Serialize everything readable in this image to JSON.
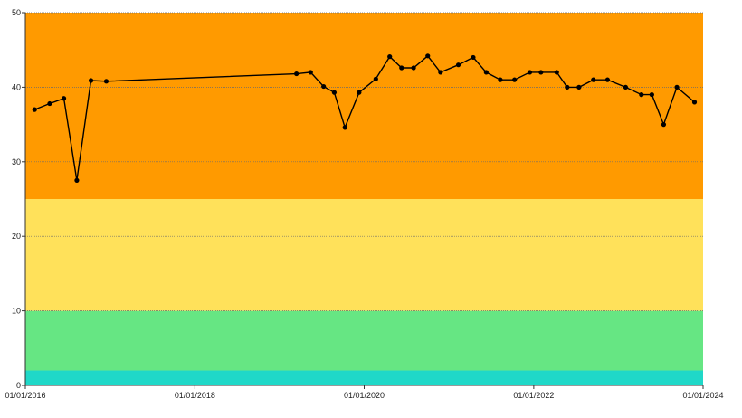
{
  "chart_data": {
    "type": "line",
    "title": "",
    "xlabel": "",
    "ylabel": "",
    "ylim": [
      0,
      50
    ],
    "xlim": [
      "2016-01-01",
      "2024-01-01"
    ],
    "y_ticks": [
      0,
      10,
      20,
      30,
      40,
      50
    ],
    "y_tick_labels": [
      "0",
      "10",
      "20",
      "30",
      "40",
      "50"
    ],
    "x_ticks": [
      "2016-01-01",
      "2018-01-01",
      "2020-01-01",
      "2022-01-01",
      "2024-01-01"
    ],
    "x_tick_labels": [
      "01/01/2016",
      "01/01/2018",
      "01/01/2020",
      "01/01/2022",
      "01/01/2024"
    ],
    "grid": "horizontal",
    "bands": [
      {
        "from": 0,
        "to": 2,
        "color": "#1fd8c8"
      },
      {
        "from": 2,
        "to": 10,
        "color": "#66e683"
      },
      {
        "from": 10,
        "to": 25,
        "color": "#ffe15a"
      },
      {
        "from": 25,
        "to": 50,
        "color": "#ff9a00"
      }
    ],
    "line_color": "#000000",
    "series": [
      {
        "x": [
          "2016-02-10",
          "2016-04-15",
          "2016-06-15",
          "2016-08-10",
          "2016-10-10",
          "2016-12-15",
          "2019-03-15",
          "2019-05-15",
          "2019-07-10",
          "2019-08-25",
          "2019-10-10",
          "2019-12-10",
          "2020-02-20",
          "2020-04-20",
          "2020-06-10",
          "2020-08-01",
          "2020-10-01",
          "2020-11-25",
          "2021-02-10",
          "2021-04-15",
          "2021-06-10",
          "2021-08-10",
          "2021-10-10",
          "2021-12-15",
          "2022-02-01",
          "2022-04-10",
          "2022-05-25",
          "2022-07-15",
          "2022-09-15",
          "2022-11-15",
          "2023-02-01",
          "2023-04-10",
          "2023-05-25",
          "2023-07-15",
          "2023-09-10",
          "2023-11-25"
        ],
        "values": [
          37,
          37.8,
          38.5,
          27.5,
          40.9,
          40.8,
          41.8,
          42.0,
          40.1,
          39.3,
          34.6,
          39.3,
          41.1,
          44.1,
          42.6,
          42.6,
          44.2,
          42.0,
          43.0,
          44.0,
          42.0,
          41.0,
          41.0,
          42.0,
          42.0,
          42.0,
          40.0,
          40.0,
          41.0,
          41.0,
          40.0,
          39.0,
          39.0,
          35.0,
          40.0,
          38.0
        ]
      }
    ]
  }
}
